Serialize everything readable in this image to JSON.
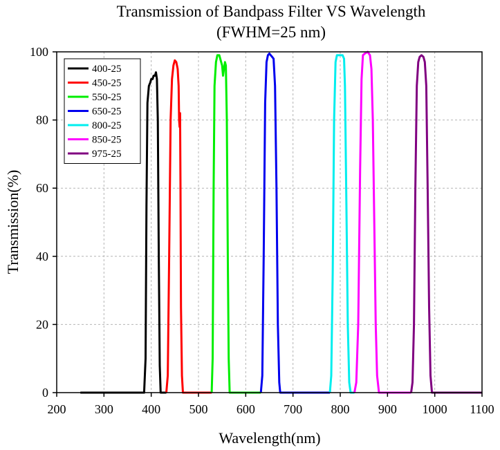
{
  "chart_data": {
    "type": "line",
    "title": "Transmission of Bandpass Filter VS Wavelength",
    "subtitle": "(FWHM=25 nm)",
    "xlabel": "Wavelength(nm)",
    "ylabel": "Transmission(%)",
    "xlim": [
      200,
      1100
    ],
    "ylim": [
      0,
      100
    ],
    "xticks": [
      200,
      300,
      400,
      500,
      600,
      700,
      800,
      900,
      1000,
      1100
    ],
    "yticks": [
      0,
      20,
      40,
      60,
      80,
      100
    ],
    "grid": true,
    "legend_position": "top-left",
    "baseline_range": [
      250,
      1100
    ],
    "series": [
      {
        "name": "400-25",
        "color": "#000000",
        "points": [
          [
            385,
            0
          ],
          [
            388,
            10
          ],
          [
            390,
            55
          ],
          [
            392,
            85
          ],
          [
            395,
            90
          ],
          [
            398,
            91
          ],
          [
            400,
            92
          ],
          [
            403,
            92
          ],
          [
            405,
            93
          ],
          [
            408,
            93
          ],
          [
            410,
            94
          ],
          [
            412,
            92
          ],
          [
            414,
            80
          ],
          [
            416,
            40
          ],
          [
            418,
            8
          ],
          [
            420,
            0
          ]
        ]
      },
      {
        "name": "450-25",
        "color": "#ff0000",
        "points": [
          [
            432,
            0
          ],
          [
            435,
            5
          ],
          [
            438,
            40
          ],
          [
            441,
            80
          ],
          [
            444,
            92
          ],
          [
            447,
            96
          ],
          [
            450,
            97.5
          ],
          [
            453,
            97
          ],
          [
            456,
            95
          ],
          [
            458,
            90
          ],
          [
            459,
            80
          ],
          [
            460,
            78
          ],
          [
            461,
            82
          ],
          [
            462,
            60
          ],
          [
            463,
            25
          ],
          [
            465,
            5
          ],
          [
            467,
            0
          ]
        ]
      },
      {
        "name": "550-25",
        "color": "#00ee00",
        "points": [
          [
            528,
            0
          ],
          [
            530,
            10
          ],
          [
            532,
            60
          ],
          [
            534,
            90
          ],
          [
            537,
            97
          ],
          [
            540,
            99
          ],
          [
            544,
            99
          ],
          [
            548,
            97
          ],
          [
            550,
            96
          ],
          [
            552,
            93
          ],
          [
            554,
            95
          ],
          [
            556,
            97
          ],
          [
            558,
            96
          ],
          [
            560,
            80
          ],
          [
            562,
            40
          ],
          [
            564,
            10
          ],
          [
            566,
            0
          ]
        ]
      },
      {
        "name": "650-25",
        "color": "#0000ee",
        "points": [
          [
            632,
            0
          ],
          [
            635,
            5
          ],
          [
            638,
            40
          ],
          [
            641,
            85
          ],
          [
            644,
            97
          ],
          [
            647,
            99
          ],
          [
            650,
            99.5
          ],
          [
            653,
            99
          ],
          [
            656,
            98.5
          ],
          [
            659,
            98
          ],
          [
            662,
            90
          ],
          [
            665,
            60
          ],
          [
            668,
            20
          ],
          [
            671,
            3
          ],
          [
            673,
            0
          ]
        ]
      },
      {
        "name": "800-25",
        "color": "#00eeee",
        "points": [
          [
            778,
            0
          ],
          [
            781,
            5
          ],
          [
            784,
            35
          ],
          [
            787,
            80
          ],
          [
            790,
            97
          ],
          [
            793,
            99
          ],
          [
            797,
            99
          ],
          [
            801,
            99
          ],
          [
            805,
            99
          ],
          [
            808,
            98
          ],
          [
            810,
            90
          ],
          [
            813,
            55
          ],
          [
            816,
            20
          ],
          [
            819,
            3
          ],
          [
            822,
            0
          ]
        ]
      },
      {
        "name": "850-25",
        "color": "#ff00ff",
        "points": [
          [
            830,
            0
          ],
          [
            834,
            3
          ],
          [
            838,
            20
          ],
          [
            842,
            65
          ],
          [
            845,
            92
          ],
          [
            848,
            99
          ],
          [
            852,
            99.5
          ],
          [
            858,
            100
          ],
          [
            863,
            99
          ],
          [
            866,
            95
          ],
          [
            869,
            80
          ],
          [
            872,
            50
          ],
          [
            875,
            20
          ],
          [
            878,
            5
          ],
          [
            882,
            0
          ]
        ]
      },
      {
        "name": "975-25",
        "color": "#800080",
        "points": [
          [
            950,
            0
          ],
          [
            953,
            3
          ],
          [
            956,
            20
          ],
          [
            959,
            60
          ],
          [
            962,
            90
          ],
          [
            965,
            97
          ],
          [
            968,
            98.5
          ],
          [
            972,
            99
          ],
          [
            976,
            98.5
          ],
          [
            979,
            97
          ],
          [
            982,
            90
          ],
          [
            985,
            60
          ],
          [
            988,
            25
          ],
          [
            991,
            5
          ],
          [
            994,
            0
          ]
        ]
      }
    ]
  }
}
